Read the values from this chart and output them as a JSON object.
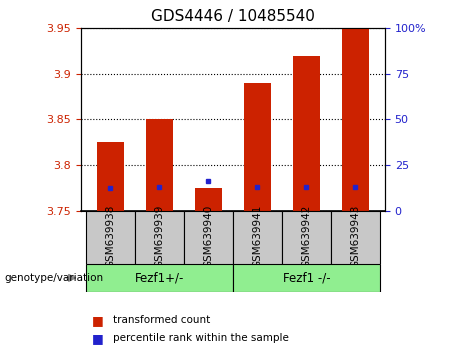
{
  "title": "GDS4446 / 10485540",
  "categories": [
    "GSM639938",
    "GSM639939",
    "GSM639940",
    "GSM639941",
    "GSM639942",
    "GSM639943"
  ],
  "red_tops": [
    3.825,
    3.85,
    3.775,
    3.89,
    3.92,
    3.95
  ],
  "blue_values": [
    3.775,
    3.776,
    3.782,
    3.776,
    3.776,
    3.776
  ],
  "bar_bottom": 3.75,
  "ylim": [
    3.75,
    3.95
  ],
  "yticks_left": [
    3.75,
    3.8,
    3.85,
    3.9,
    3.95
  ],
  "yticks_right": [
    0,
    25,
    50,
    75,
    100
  ],
  "group1_label": "Fezf1+/-",
  "group2_label": "Fezf1 -/-",
  "group1_indices": [
    0,
    1,
    2
  ],
  "group2_indices": [
    3,
    4,
    5
  ],
  "genotype_label": "genotype/variation",
  "legend_red": "transformed count",
  "legend_blue": "percentile rank within the sample",
  "red_color": "#cc2200",
  "blue_color": "#2222cc",
  "group_bg": "#c8c8c8",
  "group_green": "#90ee90",
  "bar_width": 0.55,
  "title_fontsize": 11,
  "tick_fontsize": 8,
  "label_fontsize": 7.5,
  "legend_fontsize": 7.5
}
